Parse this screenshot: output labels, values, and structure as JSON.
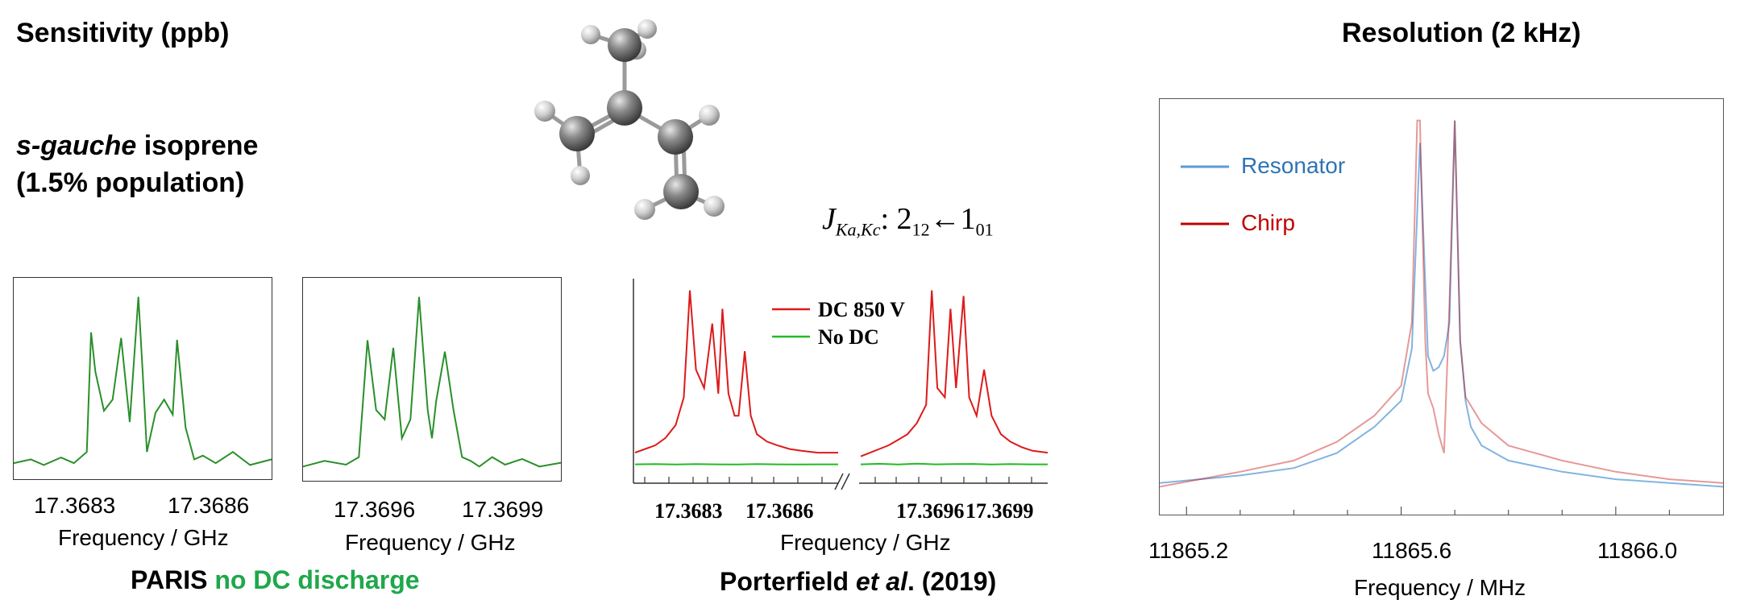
{
  "colors": {
    "paris_green": "#2a8f2a",
    "highlight_green": "#1fa84a",
    "dc_red": "#dd1a1a",
    "nodc_green": "#22bb22",
    "resonator_blue": "#5a9bd5",
    "chirp_red": "#c00000",
    "resonator_text": "#2e74b5",
    "chirp_text": "#c00000",
    "molecule_gray": "#7a7a7a"
  },
  "headings": {
    "sensitivity": "Sensitivity (ppb)",
    "resolution": "Resolution (2 kHz)",
    "species_italic": "s-gauche",
    "species_rest": " isoprene",
    "population": "(1.5% population)",
    "transition_J": "J",
    "transition_sub": "Ka,Kc",
    "transition_mid": ": 2",
    "transition_sub2": "12",
    "transition_arrow": "←1",
    "transition_sub3": "01"
  },
  "captions": {
    "paris_prefix": "PARIS ",
    "paris_highlight": "no DC discharge",
    "porterfield_prefix": "Porterfield ",
    "porterfield_italic": "et al",
    "porterfield_suffix": ". (2019)"
  },
  "molecule_icon": "isoprene-ball-and-stick-icon",
  "chart_data": [
    {
      "type": "line",
      "title": "",
      "xlabel": "Frequency / GHz",
      "ylabel": "",
      "xlim": [
        17.36815,
        17.36875
      ],
      "tick_labels": [
        "17.3683",
        "17.3686"
      ],
      "series": [
        {
          "color": "#2a8f2a",
          "x": [
            17.36815,
            17.36819,
            17.36822,
            17.36826,
            17.36829,
            17.36832,
            17.36833,
            17.36834,
            17.36836,
            17.36838,
            17.3684,
            17.36842,
            17.36844,
            17.36845,
            17.36846,
            17.36848,
            17.3685,
            17.36852,
            17.36853,
            17.36855,
            17.36857,
            17.36859,
            17.36862,
            17.36866,
            17.3687,
            17.36875
          ],
          "y": [
            0.06,
            0.08,
            0.05,
            0.09,
            0.06,
            0.12,
            0.76,
            0.55,
            0.34,
            0.4,
            0.73,
            0.28,
            0.95,
            0.55,
            0.12,
            0.33,
            0.4,
            0.32,
            0.72,
            0.25,
            0.08,
            0.1,
            0.06,
            0.12,
            0.05,
            0.08
          ]
        }
      ]
    },
    {
      "type": "line",
      "title": "",
      "xlabel": "Frequency / GHz",
      "ylabel": "",
      "xlim": [
        17.36945,
        17.37005
      ],
      "tick_labels": [
        "17.3696",
        "17.3699"
      ],
      "series": [
        {
          "color": "#2a8f2a",
          "x": [
            17.36945,
            17.3695,
            17.36955,
            17.36958,
            17.3696,
            17.36962,
            17.36964,
            17.36966,
            17.36968,
            17.3697,
            17.36972,
            17.36974,
            17.36975,
            17.36976,
            17.36978,
            17.3698,
            17.36982,
            17.36984,
            17.36986,
            17.36989,
            17.36992,
            17.36996,
            17.37,
            17.37005
          ],
          "y": [
            0.05,
            0.08,
            0.06,
            0.1,
            0.72,
            0.35,
            0.3,
            0.68,
            0.2,
            0.3,
            0.95,
            0.35,
            0.2,
            0.4,
            0.66,
            0.35,
            0.1,
            0.08,
            0.05,
            0.1,
            0.06,
            0.09,
            0.05,
            0.07
          ]
        }
      ]
    },
    {
      "type": "line",
      "title": "",
      "xlabel": "Frequency / GHz",
      "ylabel": "",
      "broken_axis": true,
      "tick_labels": [
        "17.3683",
        "17.3686",
        "17.3696",
        "17.3699"
      ],
      "legend": [
        {
          "name": "DC 850 V",
          "color": "#dd1a1a"
        },
        {
          "name": "No DC",
          "color": "#22bb22"
        }
      ],
      "series": [
        {
          "name": "DC 850 V",
          "color": "#dd1a1a",
          "segments": [
            {
              "x": [
                0,
                0.05,
                0.1,
                0.15,
                0.2,
                0.24,
                0.27,
                0.3,
                0.34,
                0.38,
                0.41,
                0.43,
                0.46,
                0.49,
                0.51,
                0.54,
                0.57,
                0.6,
                0.65,
                0.7,
                0.76,
                0.82,
                0.9,
                1.0
              ],
              "y": [
                0.1,
                0.12,
                0.14,
                0.18,
                0.25,
                0.4,
                0.98,
                0.55,
                0.45,
                0.8,
                0.42,
                0.88,
                0.42,
                0.3,
                0.3,
                0.65,
                0.3,
                0.2,
                0.16,
                0.14,
                0.12,
                0.11,
                0.1,
                0.1
              ]
            },
            {
              "x": [
                0,
                0.05,
                0.1,
                0.15,
                0.2,
                0.25,
                0.3,
                0.35,
                0.38,
                0.41,
                0.45,
                0.48,
                0.51,
                0.55,
                0.58,
                0.62,
                0.66,
                0.7,
                0.75,
                0.8,
                0.86,
                0.92,
                1.0
              ],
              "y": [
                0.08,
                0.1,
                0.12,
                0.14,
                0.17,
                0.2,
                0.26,
                0.36,
                0.98,
                0.45,
                0.4,
                0.88,
                0.45,
                0.95,
                0.4,
                0.3,
                0.55,
                0.3,
                0.2,
                0.16,
                0.13,
                0.11,
                0.1
              ]
            }
          ]
        },
        {
          "name": "No DC",
          "color": "#22bb22",
          "segments": [
            {
              "x": [
                0,
                0.1,
                0.2,
                0.3,
                0.4,
                0.5,
                0.6,
                0.7,
                0.8,
                0.9,
                1.0
              ],
              "y": [
                0.02,
                0.03,
                0.01,
                0.03,
                0.02,
                0.01,
                0.03,
                0.02,
                0.01,
                0.02,
                0.02
              ]
            },
            {
              "x": [
                0,
                0.1,
                0.2,
                0.3,
                0.4,
                0.5,
                0.6,
                0.7,
                0.8,
                0.9,
                1.0
              ],
              "y": [
                0.02,
                0.05,
                0.01,
                0.06,
                0.02,
                0.03,
                0.04,
                0.01,
                0.03,
                0.02,
                0.02
              ]
            }
          ]
        }
      ]
    },
    {
      "type": "line",
      "title": "Resolution (2 kHz)",
      "xlabel": "Frequency / MHz",
      "ylabel": "",
      "xlim": [
        11865.15,
        11866.2
      ],
      "xticks": [
        11865.2,
        11865.6,
        11866.0
      ],
      "tick_labels": [
        "11865.2",
        "11865.6",
        "11866.0"
      ],
      "legend": [
        {
          "name": "Resonator",
          "color": "#5a9bd5"
        },
        {
          "name": "Chirp",
          "color": "#c00000"
        }
      ],
      "series": [
        {
          "name": "Resonator",
          "color": "#5a9bd5",
          "x": [
            11865.15,
            11865.3,
            11865.4,
            11865.48,
            11865.55,
            11865.6,
            11865.62,
            11865.635,
            11865.65,
            11865.66,
            11865.67,
            11865.68,
            11865.69,
            11865.7,
            11865.71,
            11865.72,
            11865.73,
            11865.75,
            11865.8,
            11865.9,
            11866.0,
            11866.1,
            11866.2
          ],
          "y": [
            0.02,
            0.04,
            0.06,
            0.1,
            0.17,
            0.24,
            0.38,
            0.93,
            0.36,
            0.32,
            0.33,
            0.36,
            0.45,
            0.99,
            0.4,
            0.24,
            0.17,
            0.12,
            0.08,
            0.05,
            0.03,
            0.02,
            0.01
          ]
        },
        {
          "name": "Chirp",
          "color": "#c00000",
          "x": [
            11865.15,
            11865.3,
            11865.4,
            11865.48,
            11865.55,
            11865.6,
            11865.62,
            11865.63,
            11865.635,
            11865.645,
            11865.65,
            11865.66,
            11865.67,
            11865.68,
            11865.69,
            11865.7,
            11865.71,
            11865.72,
            11865.75,
            11865.8,
            11865.9,
            11866.0,
            11866.1,
            11866.2
          ],
          "y": [
            0.01,
            0.05,
            0.08,
            0.13,
            0.2,
            0.28,
            0.45,
            0.99,
            0.99,
            0.4,
            0.26,
            0.22,
            0.15,
            0.1,
            0.5,
            0.99,
            0.4,
            0.25,
            0.18,
            0.12,
            0.08,
            0.05,
            0.03,
            0.02
          ]
        }
      ]
    }
  ]
}
